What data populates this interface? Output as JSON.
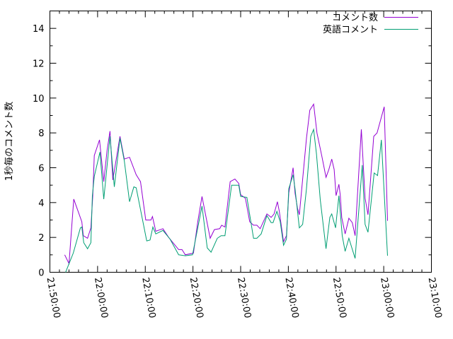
{
  "chart_data": {
    "type": "line",
    "title": "",
    "xlabel": "",
    "ylabel": "1秒毎のコメント数",
    "xlim": [
      "21:50:00",
      "23:10:00"
    ],
    "ylim": [
      0,
      15
    ],
    "x_ticks": [
      "21:50:00",
      "22:00:00",
      "22:10:00",
      "22:20:00",
      "22:30:00",
      "22:40:00",
      "22:50:00",
      "23:00:00",
      "23:10:00"
    ],
    "y_ticks": [
      "0",
      "2",
      "4",
      "6",
      "8",
      "10",
      "12",
      "14"
    ],
    "legend_position": "top-right",
    "series": [
      {
        "name": "コメント数",
        "color": "#9400d3",
        "points": [
          [
            "21:53:06",
            1.0
          ],
          [
            "21:54:00",
            0.5
          ],
          [
            "21:55:00",
            4.2
          ],
          [
            "21:56:42",
            2.9
          ],
          [
            "21:57:00",
            2.1
          ],
          [
            "21:57:54",
            1.95
          ],
          [
            "21:58:36",
            2.55
          ],
          [
            "21:59:00",
            4.4
          ],
          [
            "21:59:18",
            6.7
          ],
          [
            "22:00:24",
            7.6
          ],
          [
            "22:01:18",
            5.2
          ],
          [
            "22:02:00",
            7.0
          ],
          [
            "22:02:36",
            8.1
          ],
          [
            "22:03:12",
            5.3
          ],
          [
            "22:04:42",
            7.8
          ],
          [
            "22:05:36",
            6.5
          ],
          [
            "22:06:42",
            6.6
          ],
          [
            "22:08:06",
            5.6
          ],
          [
            "22:09:00",
            5.2
          ],
          [
            "22:10:06",
            3.0
          ],
          [
            "22:11:12",
            3.0
          ],
          [
            "22:11:30",
            3.2
          ],
          [
            "22:12:12",
            2.35
          ],
          [
            "22:13:42",
            2.5
          ],
          [
            "22:14:54",
            2.0
          ],
          [
            "22:17:00",
            1.3
          ],
          [
            "22:17:42",
            1.3
          ],
          [
            "22:18:24",
            1.0
          ],
          [
            "22:20:06",
            1.1
          ],
          [
            "22:21:00",
            2.9
          ],
          [
            "22:21:54",
            4.35
          ],
          [
            "22:23:36",
            1.95
          ],
          [
            "22:24:30",
            2.45
          ],
          [
            "22:25:36",
            2.5
          ],
          [
            "22:26:00",
            2.7
          ],
          [
            "22:26:42",
            2.6
          ],
          [
            "22:27:48",
            5.2
          ],
          [
            "22:28:48",
            5.35
          ],
          [
            "22:29:36",
            5.1
          ],
          [
            "22:30:00",
            4.45
          ],
          [
            "22:31:00",
            4.25
          ],
          [
            "22:31:54",
            2.9
          ],
          [
            "22:32:42",
            2.7
          ],
          [
            "22:33:24",
            2.7
          ],
          [
            "22:34:06",
            2.5
          ],
          [
            "22:35:30",
            3.35
          ],
          [
            "22:36:24",
            3.15
          ],
          [
            "22:37:00",
            3.35
          ],
          [
            "22:37:42",
            4.05
          ],
          [
            "22:38:06",
            3.5
          ],
          [
            "22:39:00",
            1.75
          ],
          [
            "22:39:36",
            2.1
          ],
          [
            "22:40:06",
            4.55
          ],
          [
            "22:41:00",
            6.0
          ],
          [
            "22:41:24",
            4.55
          ],
          [
            "22:41:54",
            3.7
          ],
          [
            "22:42:18",
            3.3
          ],
          [
            "22:43:48",
            7.7
          ],
          [
            "22:44:30",
            9.3
          ],
          [
            "22:45:18",
            9.65
          ],
          [
            "22:46:00",
            8.0
          ],
          [
            "22:47:00",
            6.7
          ],
          [
            "22:47:54",
            5.45
          ],
          [
            "22:48:30",
            5.9
          ],
          [
            "22:49:06",
            6.5
          ],
          [
            "22:49:36",
            5.9
          ],
          [
            "22:50:00",
            4.4
          ],
          [
            "22:50:36",
            5.05
          ],
          [
            "22:50:54",
            4.4
          ],
          [
            "22:51:12",
            3.15
          ],
          [
            "22:51:54",
            2.2
          ],
          [
            "22:52:42",
            3.1
          ],
          [
            "22:53:24",
            2.85
          ],
          [
            "22:54:00",
            2.1
          ],
          [
            "22:54:24",
            4.0
          ],
          [
            "22:55:18",
            8.2
          ],
          [
            "22:56:06",
            4.25
          ],
          [
            "22:56:42",
            3.3
          ],
          [
            "22:57:54",
            7.8
          ],
          [
            "22:58:36",
            8.0
          ],
          [
            "23:00:06",
            9.5
          ],
          [
            "23:00:48",
            2.95
          ]
        ]
      },
      {
        "name": "英語コメント",
        "color": "#009e73",
        "points": [
          [
            "21:53:18",
            0
          ],
          [
            "21:54:54",
            1.1
          ],
          [
            "21:56:24",
            2.55
          ],
          [
            "21:56:42",
            2.6
          ],
          [
            "21:57:06",
            1.7
          ],
          [
            "21:57:54",
            1.35
          ],
          [
            "21:58:36",
            1.7
          ],
          [
            "21:58:54",
            4.4
          ],
          [
            "21:59:18",
            5.5
          ],
          [
            "22:00:30",
            6.9
          ],
          [
            "22:01:18",
            4.2
          ],
          [
            "22:02:36",
            7.8
          ],
          [
            "22:03:30",
            4.9
          ],
          [
            "22:04:42",
            7.7
          ],
          [
            "22:05:36",
            6.4
          ],
          [
            "22:06:42",
            4.05
          ],
          [
            "22:07:36",
            4.9
          ],
          [
            "22:08:06",
            4.85
          ],
          [
            "22:09:00",
            3.6
          ],
          [
            "22:10:18",
            1.8
          ],
          [
            "22:11:00",
            1.85
          ],
          [
            "22:11:36",
            2.6
          ],
          [
            "22:12:12",
            2.2
          ],
          [
            "22:13:42",
            2.4
          ],
          [
            "22:15:12",
            1.9
          ],
          [
            "22:17:00",
            1.0
          ],
          [
            "22:18:24",
            0.95
          ],
          [
            "22:19:54",
            1.0
          ],
          [
            "22:21:00",
            2.55
          ],
          [
            "22:21:54",
            3.8
          ],
          [
            "22:23:00",
            1.4
          ],
          [
            "22:23:48",
            1.15
          ],
          [
            "22:25:06",
            1.95
          ],
          [
            "22:25:54",
            2.1
          ],
          [
            "22:26:42",
            2.1
          ],
          [
            "22:28:06",
            5.0
          ],
          [
            "22:29:36",
            5.0
          ],
          [
            "22:30:00",
            4.35
          ],
          [
            "22:31:18",
            4.3
          ],
          [
            "22:32:42",
            1.95
          ],
          [
            "22:33:24",
            1.95
          ],
          [
            "22:34:18",
            2.2
          ],
          [
            "22:35:30",
            3.25
          ],
          [
            "22:36:24",
            2.85
          ],
          [
            "22:36:48",
            2.85
          ],
          [
            "22:37:36",
            3.5
          ],
          [
            "22:38:18",
            2.9
          ],
          [
            "22:39:00",
            1.55
          ],
          [
            "22:39:36",
            1.9
          ],
          [
            "22:40:06",
            4.8
          ],
          [
            "22:41:00",
            5.6
          ],
          [
            "22:41:24",
            4.8
          ],
          [
            "22:42:18",
            2.55
          ],
          [
            "22:43:00",
            2.75
          ],
          [
            "22:43:48",
            4.8
          ],
          [
            "22:44:42",
            7.8
          ],
          [
            "22:45:18",
            8.2
          ],
          [
            "22:45:54",
            6.8
          ],
          [
            "22:46:42",
            4.15
          ],
          [
            "22:47:54",
            1.35
          ],
          [
            "22:48:42",
            3.15
          ],
          [
            "22:49:06",
            3.35
          ],
          [
            "22:49:54",
            2.55
          ],
          [
            "22:50:36",
            4.4
          ],
          [
            "22:51:18",
            2.1
          ],
          [
            "22:51:54",
            1.2
          ],
          [
            "22:52:42",
            1.95
          ],
          [
            "22:54:00",
            0.8
          ],
          [
            "22:55:30",
            6.15
          ],
          [
            "22:56:06",
            2.75
          ],
          [
            "22:56:42",
            2.3
          ],
          [
            "22:58:00",
            5.7
          ],
          [
            "22:58:42",
            5.55
          ],
          [
            "22:59:30",
            7.6
          ],
          [
            "23:00:48",
            0.95
          ]
        ]
      }
    ]
  }
}
